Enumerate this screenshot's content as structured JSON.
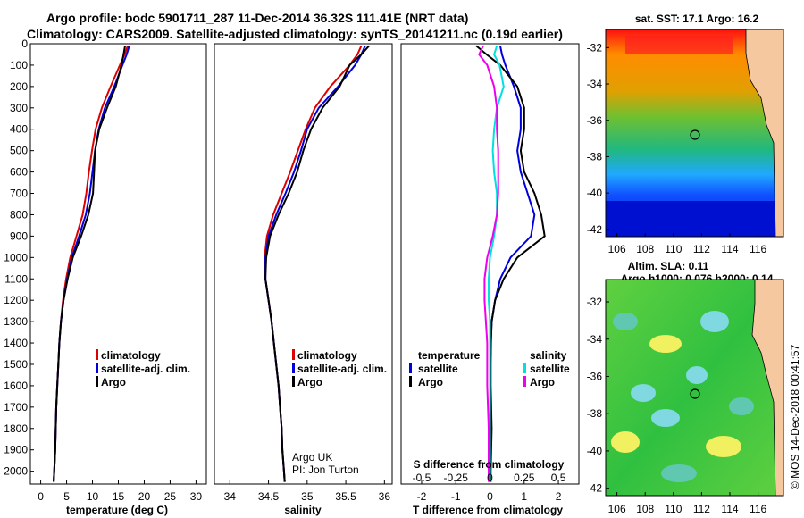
{
  "title_line1": "Argo profile: bodc 5901711_287 11-Dec-2014 36.32S 111.41E (NRT data)",
  "title_line2": "Climatology: CARS2009. Satellite-adjusted climatology: synTS_20141211.nc (0.19d earlier)",
  "sst_header": "sat. SST: 17.1 Argo: 16.2",
  "sla_header1": "Altim. SLA: 0.11",
  "sla_header2": "Argo h1000: 0.076 h2000: 0.14",
  "credit": "©IMOS 14-Dec-2018 00:41:57",
  "colors": {
    "climatology": "#dd0000",
    "satellite": "#0000dd",
    "argo": "#000000",
    "sat_salinity": "#00e0e0",
    "argo_salinity": "#ee00ee"
  },
  "chart_data": [
    {
      "type": "line",
      "xlabel": "temperature (deg C)",
      "ylabel": "",
      "xlim": [
        -2,
        32
      ],
      "ylim": [
        2060,
        0
      ],
      "xticks": [
        "0",
        "5",
        "10",
        "15",
        "20",
        "25",
        "30"
      ],
      "yticks": [
        "0",
        "100",
        "200",
        "300",
        "400",
        "500",
        "600",
        "700",
        "800",
        "900",
        "1000",
        "1100",
        "1200",
        "1300",
        "1400",
        "1500",
        "1600",
        "1700",
        "1800",
        "1900",
        "2000"
      ],
      "legend": [
        "climatology",
        "satellite-adj. clim.",
        "Argo"
      ],
      "legend_position": "lower-right",
      "series": [
        {
          "name": "climatology",
          "depth": [
            10,
            50,
            100,
            200,
            300,
            400,
            500,
            600,
            700,
            800,
            900,
            1000,
            1100,
            1200,
            1300,
            1400,
            1500,
            1600,
            1700,
            1800,
            1900,
            2000,
            2050
          ],
          "values": [
            16.8,
            16.2,
            15.3,
            13.5,
            11.8,
            10.6,
            9.9,
            9.3,
            8.8,
            8.1,
            6.9,
            5.7,
            4.9,
            4.3,
            3.9,
            3.6,
            3.4,
            3.2,
            3.0,
            2.9,
            2.8,
            2.6,
            2.5
          ]
        },
        {
          "name": "satellite-adj. clim.",
          "depth": [
            10,
            50,
            100,
            200,
            300,
            400,
            500,
            600,
            700,
            800,
            900,
            1000,
            1100,
            1200,
            1300,
            1400,
            1500,
            1600,
            1700,
            1800,
            1900,
            2000,
            2050
          ],
          "values": [
            17.1,
            16.6,
            15.8,
            14.2,
            12.4,
            11.2,
            10.5,
            10.0,
            9.5,
            8.7,
            7.4,
            6.0,
            5.1,
            4.4,
            3.9,
            3.6,
            3.4,
            3.2,
            3.0,
            2.9,
            2.8,
            2.6,
            2.5
          ]
        },
        {
          "name": "Argo",
          "depth": [
            10,
            50,
            100,
            200,
            300,
            400,
            500,
            600,
            700,
            800,
            900,
            1000,
            1100,
            1200,
            1300,
            1400,
            1500,
            1600,
            1700,
            1800,
            1900,
            2000,
            2050
          ],
          "values": [
            16.3,
            16.0,
            15.6,
            14.5,
            12.8,
            11.3,
            10.5,
            10.3,
            10.1,
            9.2,
            7.8,
            6.2,
            5.2,
            4.4,
            3.9,
            3.6,
            3.4,
            3.2,
            3.0,
            2.9,
            2.8,
            2.6,
            2.5
          ]
        }
      ]
    },
    {
      "type": "line",
      "xlabel": "salinity",
      "ylabel": "",
      "xlim": [
        33.8,
        36.1
      ],
      "ylim": [
        2060,
        0
      ],
      "xticks": [
        "34",
        "34.5",
        "35",
        "35.5",
        "36"
      ],
      "legend": [
        "climatology",
        "satellite-adj. clim.",
        "Argo"
      ],
      "legend_position": "lower-right",
      "annotations": [
        "Argo UK",
        "PI: Jon Turton"
      ],
      "series": [
        {
          "name": "climatology",
          "depth": [
            10,
            50,
            100,
            200,
            300,
            400,
            500,
            600,
            700,
            800,
            900,
            1000,
            1100,
            1200,
            1300,
            1400,
            1500,
            1600,
            1700,
            1800,
            1900,
            2000,
            2050
          ],
          "values": [
            35.7,
            35.65,
            35.55,
            35.3,
            35.1,
            34.98,
            34.88,
            34.78,
            34.67,
            34.56,
            34.48,
            34.45,
            34.46,
            34.5,
            34.54,
            34.57,
            34.6,
            34.63,
            34.65,
            34.67,
            34.68,
            34.7,
            34.71
          ]
        },
        {
          "name": "satellite-adj. clim.",
          "depth": [
            10,
            50,
            100,
            200,
            300,
            400,
            500,
            600,
            700,
            800,
            900,
            1000,
            1100,
            1200,
            1300,
            1400,
            1500,
            1600,
            1700,
            1800,
            1900,
            2000,
            2050
          ],
          "values": [
            35.75,
            35.7,
            35.62,
            35.4,
            35.15,
            35.0,
            34.92,
            34.83,
            34.72,
            34.6,
            34.5,
            34.46,
            34.46,
            34.5,
            34.54,
            34.57,
            34.6,
            34.63,
            34.65,
            34.67,
            34.68,
            34.7,
            34.71
          ]
        },
        {
          "name": "Argo",
          "depth": [
            10,
            50,
            100,
            200,
            300,
            400,
            500,
            600,
            700,
            800,
            900,
            1000,
            1100,
            1200,
            1300,
            1400,
            1500,
            1600,
            1700,
            1800,
            1900,
            2000,
            2050
          ],
          "values": [
            35.8,
            35.7,
            35.55,
            35.42,
            35.2,
            35.05,
            34.95,
            34.87,
            34.76,
            34.63,
            34.52,
            34.47,
            34.46,
            34.5,
            34.54,
            34.57,
            34.6,
            34.63,
            34.65,
            34.67,
            34.68,
            34.7,
            34.71
          ]
        }
      ]
    },
    {
      "type": "line",
      "xlabel": "T difference from climatology",
      "xlabel2": "S difference from climatology",
      "ylabel": "",
      "xlim": [
        -2.6,
        2.6
      ],
      "ylim": [
        2060,
        0
      ],
      "xticks": [
        "-2",
        "-1",
        "0",
        "1",
        "2"
      ],
      "xticks2": [
        "-0.5",
        "-0.25",
        "0",
        "0.25",
        "0.5"
      ],
      "legend_temperature_title": "temperature",
      "legend_salinity_title": "salinity",
      "legend_temperature": [
        "satellite",
        "Argo"
      ],
      "legend_salinity": [
        "satellite",
        "Argo"
      ],
      "series": [
        {
          "name": "temperature satellite",
          "depth": [
            10,
            50,
            100,
            200,
            300,
            400,
            500,
            600,
            700,
            800,
            900,
            1000,
            1100,
            1200,
            1300,
            1400,
            1500,
            1600,
            1800,
            2000,
            2050
          ],
          "values": [
            0.3,
            0.35,
            0.45,
            0.7,
            0.9,
            0.9,
            0.8,
            0.9,
            1.1,
            1.3,
            1.2,
            0.6,
            0.3,
            0.15,
            0.05,
            0.02,
            0.01,
            0.0,
            0.0,
            0.0,
            0.0
          ]
        },
        {
          "name": "temperature Argo",
          "depth": [
            10,
            50,
            100,
            200,
            300,
            400,
            500,
            600,
            700,
            800,
            900,
            1000,
            1100,
            1200,
            1300,
            1400,
            1500,
            1600,
            1800,
            2000,
            2050
          ],
          "values": [
            -0.4,
            -0.1,
            0.3,
            0.8,
            1.0,
            1.0,
            0.9,
            1.0,
            1.3,
            1.5,
            1.6,
            0.8,
            0.4,
            0.15,
            0.05,
            0.03,
            0.02,
            0.02,
            0.05,
            0.02,
            0.02
          ]
        },
        {
          "name": "salinity satellite",
          "depth": [
            10,
            50,
            100,
            200,
            300,
            400,
            500,
            600,
            700,
            800,
            900,
            1000,
            1100,
            1200,
            1300,
            1400,
            1500,
            1600,
            1800,
            2000,
            2050
          ],
          "values": [
            0.05,
            0.03,
            0.07,
            0.1,
            0.05,
            0.03,
            0.02,
            0.03,
            0.05,
            0.05,
            0.03,
            0.0,
            -0.01,
            -0.01,
            0.0,
            0.0,
            0.0,
            0.0,
            0.0,
            0.0,
            0.0
          ]
        },
        {
          "name": "salinity Argo",
          "depth": [
            10,
            50,
            100,
            200,
            300,
            400,
            500,
            600,
            700,
            800,
            900,
            1000,
            1100,
            1200,
            1300,
            1400,
            1500,
            1600,
            1800,
            2000,
            2050
          ],
          "values": [
            -0.05,
            -0.08,
            -0.02,
            0.03,
            0.05,
            0.05,
            0.06,
            0.06,
            0.06,
            0.05,
            0.02,
            -0.02,
            -0.04,
            -0.04,
            -0.03,
            -0.02,
            -0.02,
            -0.02,
            -0.01,
            -0.01,
            -0.01
          ]
        }
      ]
    },
    {
      "type": "heatmap",
      "title": "sat. SST: 17.1 Argo: 16.2",
      "x_ticks": [
        "106",
        "108",
        "110",
        "112",
        "114",
        "116"
      ],
      "y_ticks": [
        "-32",
        "-34",
        "-36",
        "-38",
        "-40",
        "-42"
      ],
      "marker": {
        "lon": 111.41,
        "lat": -36.32
      }
    },
    {
      "type": "heatmap",
      "title": "Altim. SLA: 0.11",
      "x_ticks": [
        "106",
        "108",
        "110",
        "112",
        "114",
        "116"
      ],
      "y_ticks": [
        "-32",
        "-34",
        "-36",
        "-38",
        "-40",
        "-42"
      ],
      "marker": {
        "lon": 111.41,
        "lat": -36.32
      }
    }
  ]
}
